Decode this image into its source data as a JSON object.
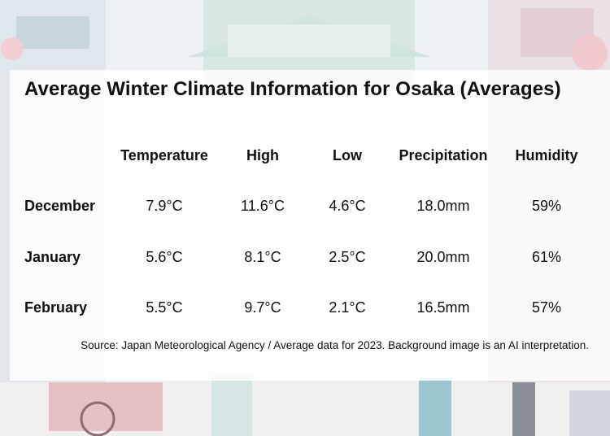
{
  "title": "Average Winter Climate Information for Osaka (Averages)",
  "columns": [
    "Temperature",
    "High",
    "Low",
    "Precipitation",
    "Humidity"
  ],
  "rows": [
    {
      "label": "December",
      "values": [
        "7.9°C",
        "11.6°C",
        "4.6°C",
        "18.0mm",
        "59%"
      ]
    },
    {
      "label": "January",
      "values": [
        "5.6°C",
        "8.1°C",
        "2.5°C",
        "20.0mm",
        "61%"
      ]
    },
    {
      "label": "February",
      "values": [
        "5.5°C",
        "9.7°C",
        "2.1°C",
        "16.5mm",
        "57%"
      ]
    }
  ],
  "source": "Source: Japan Meteorological Agency / Average data for 2023. Background image is an AI interpretation."
}
